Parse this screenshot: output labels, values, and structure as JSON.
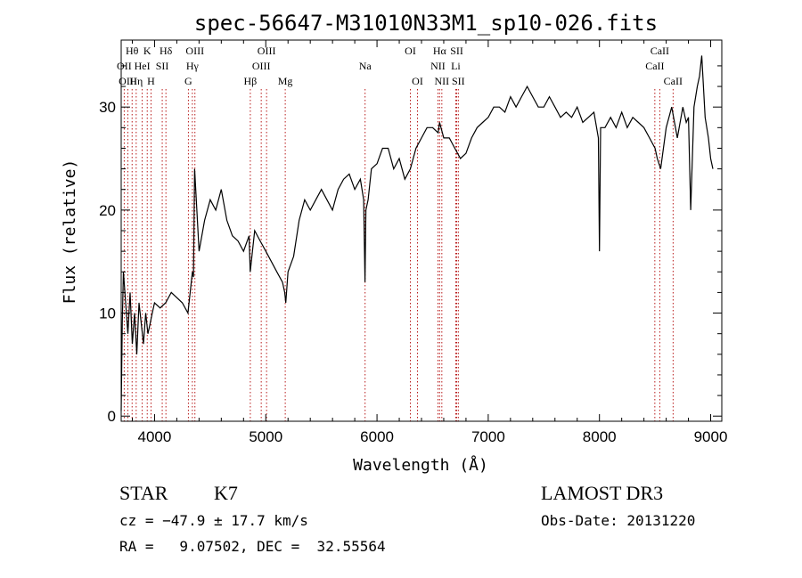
{
  "chart_data": {
    "type": "line",
    "title": "spec-56647-M31010N33M1_sp10-026.fits",
    "xlabel": "Wavelength (Å)",
    "ylabel": "Flux (relative)",
    "xlim": [
      3700,
      9100
    ],
    "ylim": [
      -0.5,
      36.5
    ],
    "xticks": [
      4000,
      5000,
      6000,
      7000,
      8000,
      9000
    ],
    "yticks": [
      0,
      10,
      20,
      30
    ],
    "grid": false,
    "series": [
      {
        "name": "flux",
        "x": [
          3700,
          3710,
          3720,
          3740,
          3760,
          3780,
          3800,
          3820,
          3840,
          3860,
          3880,
          3900,
          3920,
          3940,
          3960,
          3980,
          4000,
          4050,
          4100,
          4150,
          4200,
          4250,
          4300,
          4320,
          4340,
          4350,
          4360,
          4400,
          4450,
          4500,
          4550,
          4600,
          4650,
          4700,
          4750,
          4800,
          4850,
          4860,
          4880,
          4900,
          4950,
          5000,
          5050,
          5100,
          5150,
          5170,
          5180,
          5200,
          5250,
          5300,
          5350,
          5400,
          5450,
          5500,
          5550,
          5600,
          5650,
          5700,
          5750,
          5800,
          5850,
          5880,
          5892,
          5900,
          5920,
          5950,
          6000,
          6050,
          6100,
          6150,
          6200,
          6250,
          6300,
          6350,
          6400,
          6450,
          6500,
          6550,
          6563,
          6600,
          6650,
          6700,
          6750,
          6800,
          6850,
          6900,
          6950,
          7000,
          7050,
          7100,
          7150,
          7200,
          7250,
          7300,
          7350,
          7400,
          7450,
          7500,
          7550,
          7600,
          7650,
          7700,
          7750,
          7800,
          7850,
          7900,
          7950,
          7990,
          8000,
          8010,
          8050,
          8100,
          8150,
          8200,
          8250,
          8300,
          8350,
          8400,
          8450,
          8500,
          8520,
          8550,
          8600,
          8650,
          8700,
          8750,
          8780,
          8800,
          8820,
          8850,
          8880,
          8900,
          8920,
          8950,
          8980,
          9000,
          9020
        ],
        "y": [
          0.5,
          9,
          14,
          11,
          8,
          12,
          7,
          10,
          6,
          11,
          9,
          7,
          10,
          8,
          9,
          10,
          11,
          10.5,
          11,
          12,
          11.5,
          11,
          10,
          12,
          14,
          13.5,
          24,
          16,
          19,
          21,
          20,
          22,
          19,
          17.5,
          17,
          16,
          17.5,
          14,
          16,
          18,
          17,
          16,
          15,
          14,
          13,
          12,
          11,
          14,
          15.5,
          19,
          21,
          20,
          21,
          22,
          21,
          20,
          22,
          23,
          23.5,
          22,
          23,
          21,
          13,
          20,
          21,
          24,
          24.5,
          26,
          26,
          24,
          25,
          23,
          24,
          26,
          27,
          28,
          28,
          27.5,
          28.5,
          27,
          27,
          26,
          25,
          25.5,
          27,
          28,
          28.5,
          29,
          30,
          30,
          29.5,
          31,
          30,
          31,
          32,
          31,
          30,
          30,
          31,
          30,
          29,
          29.5,
          29,
          30,
          28.5,
          29,
          29.5,
          27,
          16,
          28,
          28,
          29,
          28,
          29.5,
          28,
          29,
          28.5,
          28,
          27,
          26,
          25,
          24,
          28,
          30,
          27,
          30,
          28.5,
          29,
          20,
          30,
          32,
          33,
          35,
          29,
          27,
          25,
          24
        ]
      }
    ],
    "line_markers": [
      {
        "label": "Hθ",
        "wavelength": 3798,
        "row": 1
      },
      {
        "label": "OII",
        "wavelength": 3727,
        "row": 2
      },
      {
        "label": "OIII",
        "wavelength": 3760,
        "row": 3
      },
      {
        "label": "Hη",
        "wavelength": 3835,
        "row": 3
      },
      {
        "label": "HeI",
        "wavelength": 3889,
        "row": 2
      },
      {
        "label": "K",
        "wavelength": 3934,
        "row": 1
      },
      {
        "label": "H",
        "wavelength": 3968,
        "row": 3
      },
      {
        "label": "SII",
        "wavelength": 4069,
        "row": 2
      },
      {
        "label": "Hδ",
        "wavelength": 4102,
        "row": 1
      },
      {
        "label": "OIII",
        "wavelength": 4363,
        "row": 1
      },
      {
        "label": "Hγ",
        "wavelength": 4340,
        "row": 2
      },
      {
        "label": "G",
        "wavelength": 4304,
        "row": 3
      },
      {
        "label": "Hβ",
        "wavelength": 4861,
        "row": 3
      },
      {
        "label": "OIII",
        "wavelength": 4959,
        "row": 2
      },
      {
        "label": "OIII",
        "wavelength": 5007,
        "row": 1
      },
      {
        "label": "Mg",
        "wavelength": 5175,
        "row": 3
      },
      {
        "label": "Na",
        "wavelength": 5893,
        "row": 2
      },
      {
        "label": "OI",
        "wavelength": 6300,
        "row": 1
      },
      {
        "label": "OI",
        "wavelength": 6364,
        "row": 3
      },
      {
        "label": "Hα",
        "wavelength": 6563,
        "row": 1
      },
      {
        "label": "NII",
        "wavelength": 6548,
        "row": 2
      },
      {
        "label": "NII",
        "wavelength": 6583,
        "row": 3
      },
      {
        "label": "SII",
        "wavelength": 6717,
        "row": 1
      },
      {
        "label": "Li",
        "wavelength": 6708,
        "row": 2
      },
      {
        "label": "SII",
        "wavelength": 6731,
        "row": 3
      },
      {
        "label": "CaII",
        "wavelength": 8542,
        "row": 1
      },
      {
        "label": "CaII",
        "wavelength": 8498,
        "row": 2
      },
      {
        "label": "CaII",
        "wavelength": 8662,
        "row": 3
      }
    ]
  },
  "info": {
    "object_class": "STAR",
    "subclass": "K7",
    "survey": "LAMOST DR3",
    "cz": "cz = −47.9 ± 17.7 km/s",
    "obs_date": "Obs-Date: 20131220",
    "coords": "RA =   9.07502, DEC =  32.55564"
  },
  "colors": {
    "line": "#000000",
    "marker": "#b00000",
    "axis": "#000000"
  }
}
